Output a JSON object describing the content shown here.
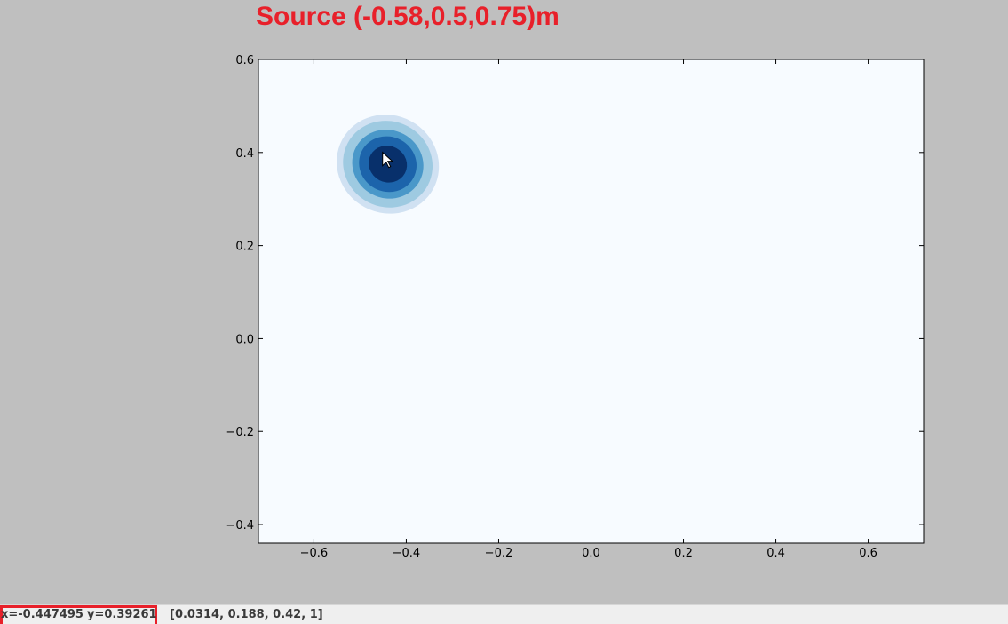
{
  "window": {
    "title": "Source (-0.58,0.5,0.75)m"
  },
  "status_bar": {
    "x_readout": "x=-0.447495",
    "y_readout": "y=0.39261",
    "color_readout": "[0.0314, 0.188, 0.42, 1]"
  },
  "chart_data": {
    "type": "contour",
    "title": "Source (-0.58,0.5,0.75)m",
    "xlabel": "",
    "ylabel": "",
    "xlim": [
      -0.72,
      0.72
    ],
    "ylim": [
      -0.44,
      0.6
    ],
    "xticks": [
      -0.6,
      -0.4,
      -0.2,
      0.0,
      0.2,
      0.4,
      0.6
    ],
    "xtick_labels": [
      "−0.6",
      "−0.4",
      "−0.2",
      "0.0",
      "0.2",
      "0.4",
      "0.6"
    ],
    "yticks": [
      0.6,
      0.4,
      0.2,
      0.0,
      -0.2,
      -0.4
    ],
    "ytick_labels": [
      "0.6",
      "0.4",
      "0.2",
      "0.0",
      "−0.2",
      "−0.4"
    ],
    "grid": false,
    "colormap": "Blues",
    "background_color": "#f7fbff",
    "peak": {
      "x": -0.44,
      "y": 0.375
    },
    "contour_levels": [
      {
        "level": 1,
        "rx": 0.112,
        "ry": 0.105,
        "color": "#d0e1f2"
      },
      {
        "level": 2,
        "rx": 0.098,
        "ry": 0.092,
        "color": "#9ecae1"
      },
      {
        "level": 3,
        "rx": 0.078,
        "ry": 0.073,
        "color": "#4a98c9"
      },
      {
        "level": 4,
        "rx": 0.063,
        "ry": 0.059,
        "color": "#1c64ab"
      },
      {
        "level": 5,
        "rx": 0.042,
        "ry": 0.039,
        "color": "#08306b"
      }
    ],
    "rotation_deg": 28,
    "cursor": {
      "x": -0.447495,
      "y": 0.39261
    }
  }
}
